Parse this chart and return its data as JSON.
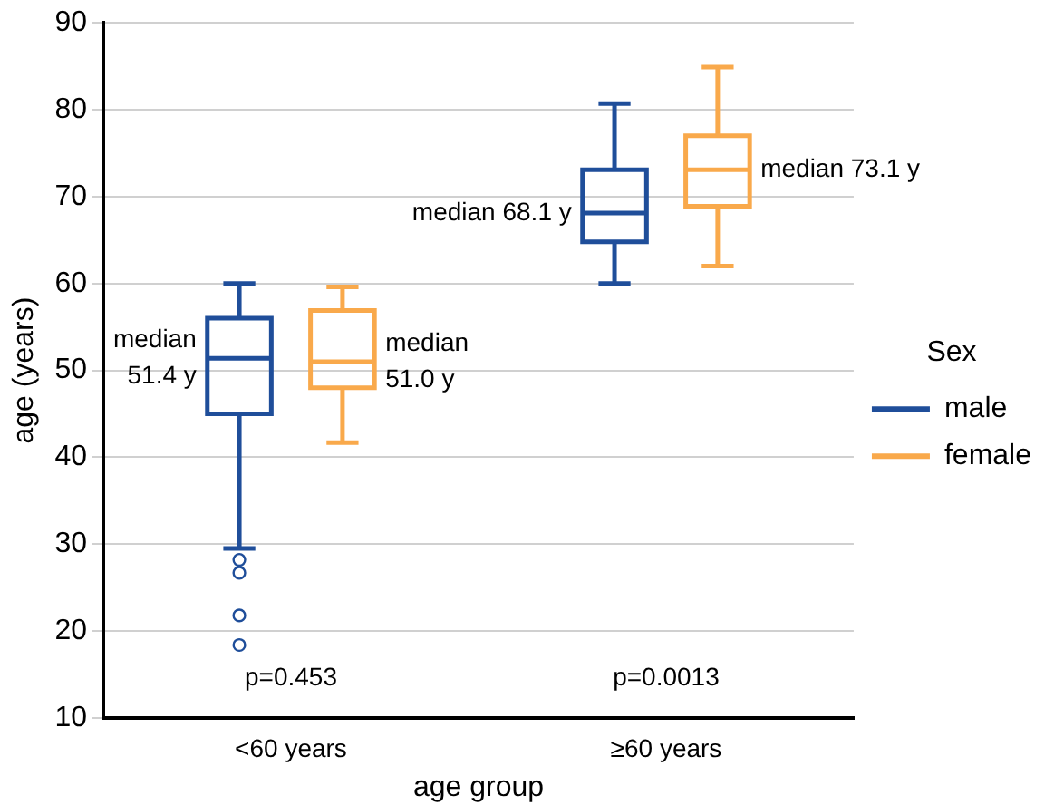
{
  "chart_data": {
    "type": "box",
    "xlabel": "age group",
    "ylabel": "age (years)",
    "legend_title": "Sex",
    "categories": [
      "<60 years",
      "≥60 years"
    ],
    "series": [
      {
        "name": "male",
        "color": "#1f4e9a",
        "boxes": [
          {
            "low": 29.5,
            "q1": 45.0,
            "median": 51.4,
            "q3": 56.0,
            "high": 60.0,
            "outliers": [
              28.2,
              26.7,
              21.8,
              18.4
            ]
          },
          {
            "low": 60.0,
            "q1": 64.8,
            "median": 68.1,
            "q3": 73.1,
            "high": 80.7
          }
        ]
      },
      {
        "name": "female",
        "color": "#f9a94b",
        "boxes": [
          {
            "low": 41.7,
            "q1": 48.0,
            "median": 51.0,
            "q3": 56.9,
            "high": 59.6
          },
          {
            "low": 62.0,
            "q1": 68.9,
            "median": 73.1,
            "q3": 77.0,
            "high": 84.9
          }
        ]
      }
    ],
    "ylim": [
      10,
      90
    ],
    "yticks": [
      10,
      20,
      30,
      40,
      50,
      60,
      70,
      80,
      90
    ],
    "grid": "y",
    "legend": "right",
    "annotations": [
      "median 51.4 y",
      "median 51.0 y",
      "median 68.1 y",
      "median 73.1 y",
      "p=0.453",
      "p=0.0013"
    ]
  }
}
